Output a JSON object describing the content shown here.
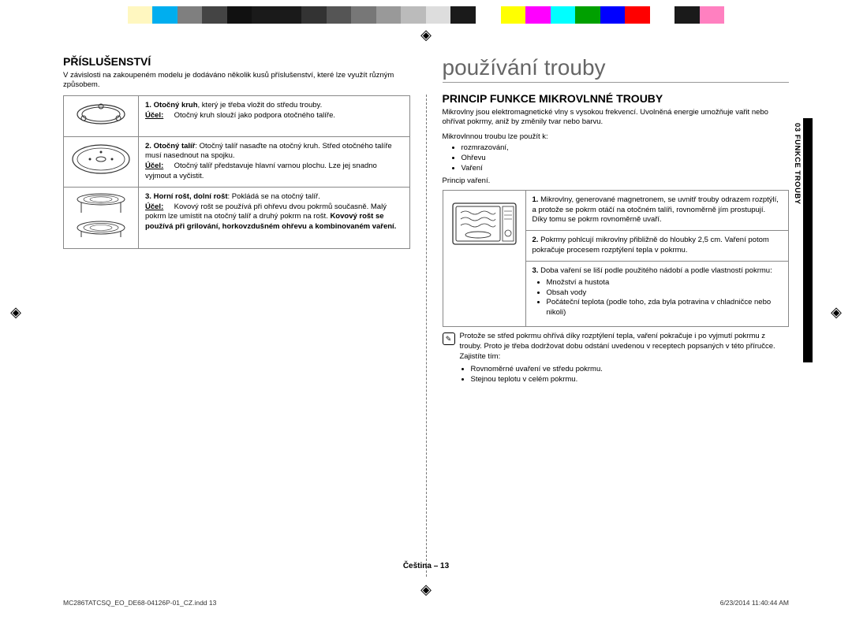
{
  "colorbar": [
    "#ffffff",
    "#fff7c0",
    "#00aeef",
    "#7f7f7f",
    "#444444",
    "#111111",
    "#1a1a1a",
    "#1a1a1a",
    "#333333",
    "#555555",
    "#777777",
    "#999999",
    "#bbbbbb",
    "#dddddd",
    "#1a1a1a",
    "#ffffff",
    "#ffff00",
    "#ff00ff",
    "#00ffff",
    "#00a000",
    "#0000ff",
    "#ff0000",
    "#ffffff",
    "#1a1a1a",
    "#ff80c0",
    "#ffffff"
  ],
  "doc_title": "používání trouby",
  "left": {
    "heading": "PŘÍSLUŠENSTVÍ",
    "intro": "V závislosti na zakoupeném modelu je dodáváno několik kusů příslušenství, které lze využít různým způsobem.",
    "rows": [
      {
        "num": "1.",
        "title_bold": "Otočný kruh",
        "title_rest": ", který je třeba vložit do středu trouby.",
        "purpose_label": "Účel:",
        "purpose": "Otočný kruh slouží jako podpora otočného talíře."
      },
      {
        "num": "2.",
        "title_bold": "Otočný talíř",
        "title_rest": ": Otočný talíř nasaďte na otočný kruh. Střed otočného talíře musí nasednout na spojku.",
        "purpose_label": "Účel:",
        "purpose": "Otočný talíř představuje hlavní varnou plochu. Lze jej snadno vyjmout a vyčistit."
      },
      {
        "num": "3.",
        "title_bold": "Horní rošt, dolní rošt",
        "title_rest": ": Pokládá se na otočný talíř.",
        "purpose_label": "Účel:",
        "purpose_pre": "Kovový rošt se používá při ohřevu dvou pokrmů současně. Malý pokrm lze umístit na otočný talíř a druhý pokrm na rošt. ",
        "purpose_bold": "Kovový rošt se používá při grilování, horkovzdušném ohřevu a kombinovaném vaření."
      }
    ]
  },
  "right": {
    "heading": "PRINCIP FUNKCE MIKROVLNNÉ TROUBY",
    "intro1": "Mikrovlny jsou elektromagnetické vlny s vysokou frekvencí. Uvolněná energie umožňuje vařit nebo ohřívat pokrmy, aniž by změnily tvar nebo barvu.",
    "intro2": "Mikrovlnnou troubu lze použít k:",
    "uses": [
      "rozmrazování,",
      "Ohřevu",
      "Vaření"
    ],
    "principle_label": "Princip vaření.",
    "principles": [
      {
        "num": "1.",
        "text": "Mikrovlny, generované magnetronem, se uvnitř trouby odrazem rozptýlí, a protože se pokrm otáčí na otočném talíři, rovnoměrně jím prostupují. Díky tomu se pokrm rovnoměrně uvaří."
      },
      {
        "num": "2.",
        "text": "Pokrmy pohlcují mikrovlny přibližně do hloubky 2,5 cm. Vaření potom pokračuje procesem rozptýlení tepla v pokrmu."
      },
      {
        "num": "3.",
        "text": "Doba vaření se liší podle použitého nádobí a podle vlastností pokrmu:",
        "sub": [
          "Množství a hustota",
          "Obsah vody",
          "Počáteční teplota (podle toho, zda byla potravina v chladničce nebo nikoli)"
        ]
      }
    ],
    "note": "Protože se střed pokrmu ohřívá díky rozptýlení tepla, vaření pokračuje i po vyjmutí pokrmu z trouby. Proto je třeba dodržovat dobu odstání uvedenou v receptech popsaných v této příručce. Zajistíte tím:",
    "note_bullets": [
      "Rovnoměrné uvaření ve středu pokrmu.",
      "Stejnou teplotu v celém pokrmu."
    ]
  },
  "sidetab": "03 FUNKCE TROUBY",
  "footer_center": "Čeština – 13",
  "footer_left": "MC286TATCSQ_EO_DE68-04126P-01_CZ.indd   13",
  "footer_right": "6/23/2014   11:40:44 AM"
}
